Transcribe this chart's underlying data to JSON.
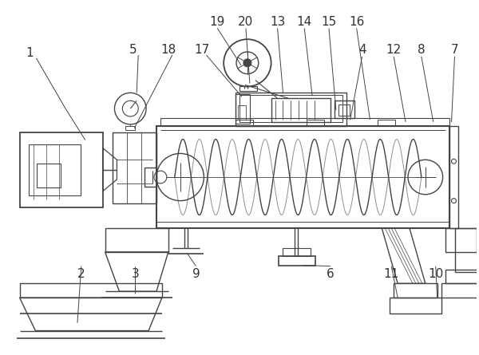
{
  "background_color": "#ffffff",
  "line_color": "#444444",
  "label_color": "#333333",
  "label_fontsize": 11,
  "fig_width": 6.0,
  "fig_height": 4.45
}
